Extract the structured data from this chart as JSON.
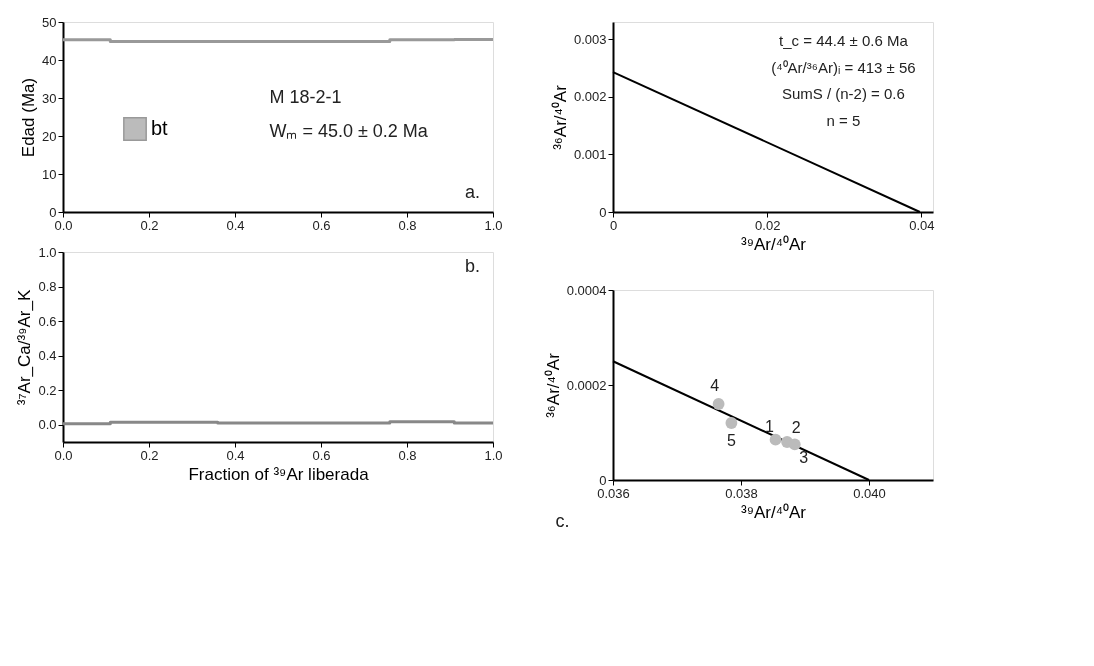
{
  "chart_data": [
    {
      "type": "step",
      "ylabel": "Edad (Ma)",
      "xlim": [
        0,
        1
      ],
      "ylim": [
        0,
        50
      ],
      "xticks": [
        {
          "value": 0,
          "label": "0.0"
        },
        0.2,
        0.4,
        0.6,
        0.8,
        {
          "value": 1,
          "label": "1.0"
        }
      ],
      "yticks": [
        0,
        10,
        20,
        30,
        40,
        50
      ],
      "legend": "left",
      "annotations": [
        "M 18-2-1",
        "Wₘ = 45.0 ± 0.2 Ma",
        "a."
      ],
      "series": [
        {
          "name": "bt",
          "color": "#999999",
          "x": [
            0,
            0.11,
            0.36,
            0.76,
            0.91,
            1.0
          ],
          "values": [
            45.3,
            44.9,
            44.9,
            45.3,
            45.4,
            45.4
          ]
        }
      ]
    },
    {
      "type": "step",
      "xlabel": "Fraction of ³⁹Ar liberada",
      "ylabel": "³⁷Ar_Ca/³⁹Ar_K",
      "xlim": [
        0,
        1
      ],
      "ylim": [
        -0.1,
        1.0
      ],
      "xticks": [
        {
          "value": 0,
          "label": "0.0"
        },
        0.2,
        0.4,
        0.6,
        0.8,
        {
          "value": 1,
          "label": "1.0"
        }
      ],
      "yticks": [
        {
          "value": 0,
          "label": "0.0"
        },
        0.2,
        0.4,
        0.6,
        0.8,
        {
          "value": 1,
          "label": "1.0"
        }
      ],
      "annotations": [
        "b."
      ],
      "series": [
        {
          "color": "#888888",
          "x": [
            0,
            0.11,
            0.36,
            0.76,
            0.91,
            1.0
          ],
          "values": [
            0.005,
            0.015,
            0.01,
            0.017,
            0.01,
            0.01
          ]
        }
      ]
    },
    {
      "type": "line",
      "xlabel": "³⁹Ar/⁴⁰Ar",
      "ylabel": "³⁶Ar/⁴⁰Ar",
      "xlim": [
        0,
        0.0415
      ],
      "ylim": [
        0,
        0.0033
      ],
      "xticks": [
        0,
        0.02,
        0.04
      ],
      "yticks": [
        0,
        0.001,
        0.002,
        0.003
      ],
      "annotations": [
        "t_c = 44.4 ± 0.6 Ma",
        "(⁴⁰Ar/³⁶Ar)ᵢ = 413 ± 56",
        "SumS / (n-2) = 0.6",
        "n = 5"
      ],
      "series": [
        {
          "color": "#000000",
          "x": [
            0,
            0.0398
          ],
          "values": [
            0.00243,
            0
          ]
        }
      ]
    },
    {
      "type": "scatter",
      "xlabel": "³⁹Ar/⁴⁰Ar",
      "ylabel": "³⁶Ar/⁴⁰Ar",
      "xlim": [
        0.036,
        0.041
      ],
      "ylim": [
        0,
        0.0004
      ],
      "xticks": [
        0.036,
        0.038,
        {
          "value": 0.04,
          "label": "0.040"
        }
      ],
      "yticks": [
        0,
        0.0002,
        0.0004
      ],
      "marker": "circle",
      "annotations": [
        "c.",
        {
          "text": "1",
          "x": 0.03854,
          "y": 8.5e-05
        },
        {
          "text": "2",
          "x": 0.03872,
          "y": 8e-05
        },
        {
          "text": "3",
          "x": 0.03884,
          "y": 7.5e-05
        },
        {
          "text": "4",
          "x": 0.03765,
          "y": 0.00016
        },
        {
          "text": "5",
          "x": 0.03785,
          "y": 0.00012
        }
      ],
      "series": [
        {
          "type": "line",
          "marker": "none",
          "color": "#000000",
          "x": [
            0.036,
            0.04
          ],
          "values": [
            0.00025,
            0
          ]
        },
        {
          "type": "scatter",
          "color": "#bbbbbb",
          "x": [
            0.03854,
            0.03872,
            0.03884,
            0.03765,
            0.03785
          ],
          "values": [
            8.5e-05,
            8e-05,
            7.5e-05,
            0.00016,
            0.00012
          ]
        }
      ]
    }
  ]
}
